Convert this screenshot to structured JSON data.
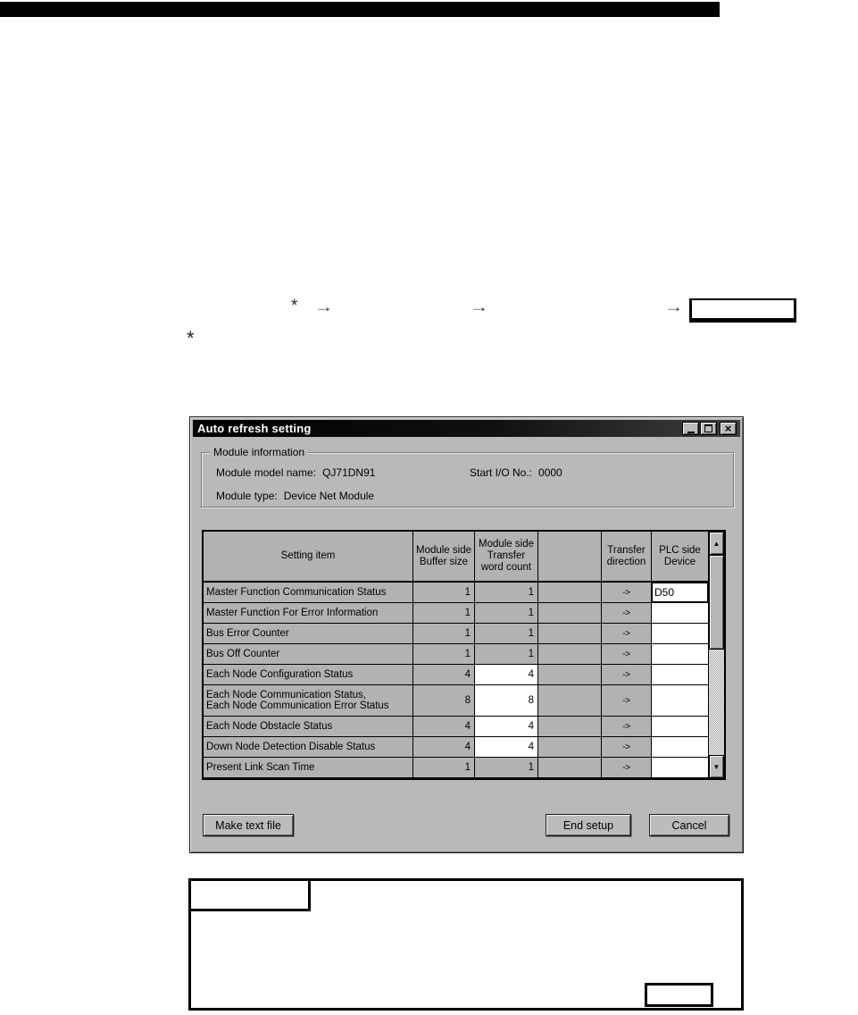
{
  "colors": {
    "dialog_bg": "#b9b9b9",
    "cell_gray": "#b2b2b2",
    "titlebar": "#000000",
    "top_rule": "#000000"
  },
  "nav_path": {
    "prefix_asterisk": "*",
    "arrows": [
      "→",
      "→",
      "→"
    ],
    "footnote_marker": "*"
  },
  "dialog": {
    "title": "Auto refresh setting",
    "window_controls": {
      "close_glyph": "×"
    },
    "module_info": {
      "group_label": "Module information",
      "model_label": "Module model name:",
      "model_value": "QJ71DN91",
      "start_io_label": "Start I/O No.:",
      "start_io_value": "0000",
      "type_label": "Module type:",
      "type_value": "Device Net Module"
    },
    "table": {
      "headers": [
        {
          "lines": [
            "Setting item"
          ]
        },
        {
          "lines": [
            "Module side",
            "Buffer size"
          ]
        },
        {
          "lines": [
            "Module side",
            "Transfer",
            "word count"
          ]
        },
        {
          "lines": [
            ""
          ]
        },
        {
          "lines": [
            "Transfer",
            "direction"
          ]
        },
        {
          "lines": [
            "PLC side",
            "Device"
          ]
        }
      ],
      "rows": [
        {
          "item_lines": [
            "Master Function Communication Status"
          ],
          "buffer": "1",
          "words": "1",
          "words_editable": false,
          "direction": "->",
          "device": "D50",
          "device_focused": true,
          "tall": false
        },
        {
          "item_lines": [
            "Master Function For Error Information"
          ],
          "buffer": "1",
          "words": "1",
          "words_editable": false,
          "direction": "->",
          "device": "",
          "device_focused": false,
          "tall": false
        },
        {
          "item_lines": [
            "Bus Error Counter"
          ],
          "buffer": "1",
          "words": "1",
          "words_editable": false,
          "direction": "->",
          "device": "",
          "device_focused": false,
          "tall": false
        },
        {
          "item_lines": [
            "Bus Off Counter"
          ],
          "buffer": "1",
          "words": "1",
          "words_editable": false,
          "direction": "->",
          "device": "",
          "device_focused": false,
          "tall": false
        },
        {
          "item_lines": [
            "Each Node Configuration Status"
          ],
          "buffer": "4",
          "words": "4",
          "words_editable": true,
          "direction": "->",
          "device": "",
          "device_focused": false,
          "tall": false
        },
        {
          "item_lines": [
            "Each Node Communication Status,",
            "Each Node Communication Error Status"
          ],
          "buffer": "8",
          "words": "8",
          "words_editable": true,
          "direction": "->",
          "device": "",
          "device_focused": false,
          "tall": true
        },
        {
          "item_lines": [
            "Each Node Obstacle Status"
          ],
          "buffer": "4",
          "words": "4",
          "words_editable": true,
          "direction": "->",
          "device": "",
          "device_focused": false,
          "tall": false
        },
        {
          "item_lines": [
            "Down Node Detection Disable Status"
          ],
          "buffer": "4",
          "words": "4",
          "words_editable": true,
          "direction": "->",
          "device": "",
          "device_focused": false,
          "tall": false
        },
        {
          "item_lines": [
            "Present Link Scan Time"
          ],
          "buffer": "1",
          "words": "1",
          "words_editable": false,
          "direction": "->",
          "device": "",
          "device_focused": false,
          "tall": false
        }
      ]
    },
    "scrollbar": {
      "up": "▲",
      "down": "▼"
    },
    "buttons": {
      "make_text_file": "Make text file",
      "end_setup": "End setup",
      "cancel": "Cancel"
    }
  }
}
